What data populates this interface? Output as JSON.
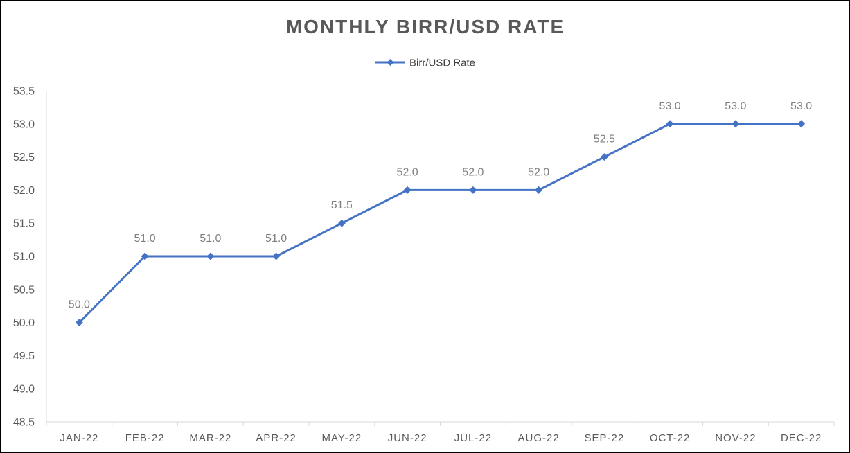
{
  "colors": {
    "series": "#4472C4",
    "title": "#595959",
    "axis_text": "#595959",
    "data_label": "#7F7F7F",
    "axis_line": "#D9D9D9",
    "legend_text": "#404040"
  },
  "chart_data": {
    "type": "line",
    "title": "MONTHLY  BIRR/USD RATE",
    "xlabel": "",
    "ylabel": "",
    "categories": [
      "JAN-22",
      "FEB-22",
      "MAR-22",
      "APR-22",
      "MAY-22",
      "JUN-22",
      "JUL-22",
      "AUG-22",
      "SEP-22",
      "OCT-22",
      "NOV-22",
      "DEC-22"
    ],
    "series": [
      {
        "name": "Birr/USD Rate",
        "values": [
          50.0,
          51.0,
          51.0,
          51.0,
          51.5,
          52.0,
          52.0,
          52.0,
          52.5,
          53.0,
          53.0,
          53.0
        ],
        "data_labels": [
          "50.0",
          "51.0",
          "51.0",
          "51.0",
          "51.5",
          "52.0",
          "52.0",
          "52.0",
          "52.5",
          "53.0",
          "53.0",
          "53.0"
        ],
        "marker": "diamond"
      }
    ],
    "ylim": [
      48.5,
      53.5
    ],
    "yticks": [
      "48.5",
      "49.0",
      "49.5",
      "50.0",
      "50.5",
      "51.0",
      "51.5",
      "52.0",
      "52.5",
      "53.0",
      "53.5"
    ],
    "grid": false,
    "legend_position": "top-center"
  }
}
